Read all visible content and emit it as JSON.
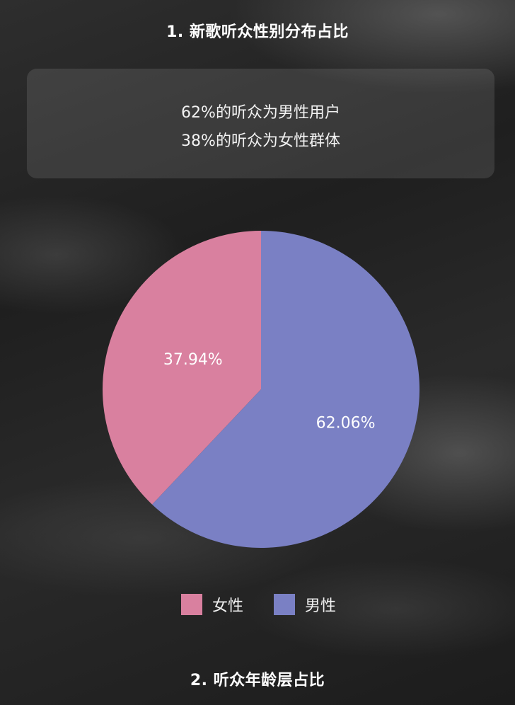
{
  "section1": {
    "title": "1. 新歌听众性别分布占比"
  },
  "summary": {
    "line1": "62%的听众为男性用户",
    "line2": "38%的听众为女性群体"
  },
  "chart_data": {
    "type": "pie",
    "title": "",
    "slices": [
      {
        "label": "女性",
        "value": 37.94,
        "value_label": "37.94%",
        "color": "#d9809f"
      },
      {
        "label": "男性",
        "value": 62.06,
        "value_label": "62.06%",
        "color": "#7a80c4"
      }
    ],
    "start_angle": "12 o'clock",
    "direction": "counter-clockwise (女性 from top going left)",
    "legend": [
      {
        "label": "女性",
        "color": "#d9809f"
      },
      {
        "label": "男性",
        "color": "#7a80c4"
      }
    ],
    "legend_position": "bottom"
  },
  "section2": {
    "title": "2. 听众年龄层占比"
  }
}
